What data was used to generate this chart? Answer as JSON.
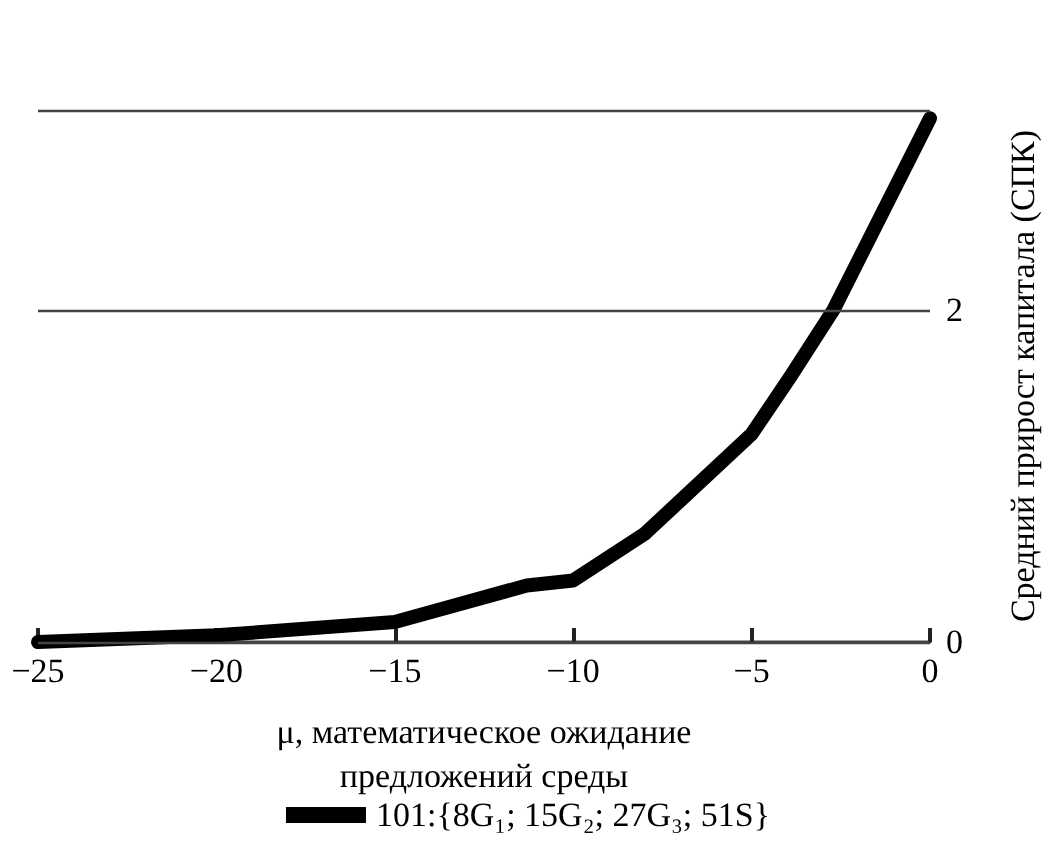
{
  "chart_data": {
    "type": "line",
    "xlabel": "μ, математическое ожидание\nпредложений среды",
    "ylabel": "Средний прирост капитала (СПК)",
    "x": [
      -25,
      -20,
      -15,
      -11.3,
      -10,
      -8,
      -5,
      -3.9,
      -2.7,
      0
    ],
    "series": [
      {
        "name": "101:{8G₁; 15G₂; 27G₃; 51S}",
        "color": "#000000",
        "values": [
          0,
          0.04,
          0.12,
          0.34,
          0.37,
          0.65,
          1.25,
          1.6,
          2,
          3.15
        ]
      }
    ],
    "xlim": [
      -25,
      0
    ],
    "xticks": [
      -25,
      -20,
      -15,
      -10,
      -5,
      0
    ],
    "ylim": [
      0,
      3.2
    ],
    "yticks": [
      0,
      2,
      {
        "value": 3.2,
        "label": null
      }
    ],
    "grid": "y",
    "legend": "bottom",
    "marker": "none",
    "line_style": "solid"
  }
}
